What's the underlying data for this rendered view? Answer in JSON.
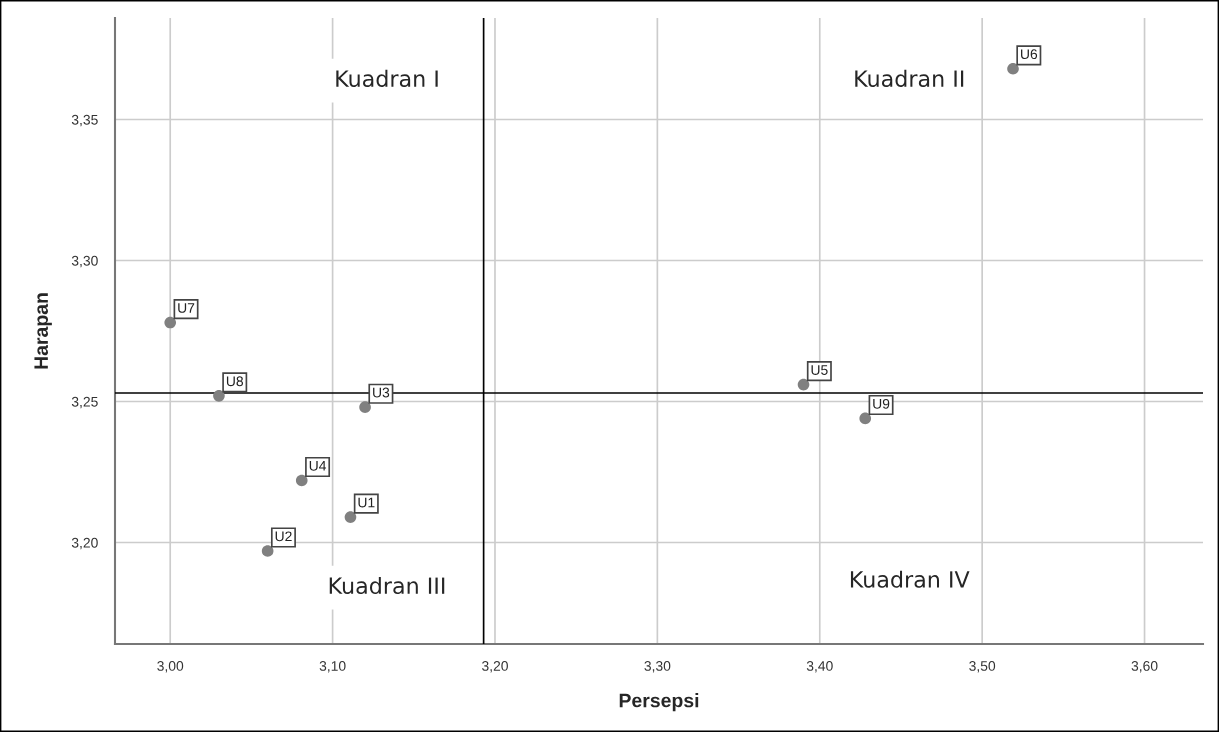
{
  "chart_data": {
    "type": "scatter",
    "xlabel": "Persepsi",
    "ylabel": "Harapan",
    "x": [
      3.111,
      3.06,
      3.12,
      3.081,
      3.39,
      3.519,
      3.0,
      3.03,
      3.428
    ],
    "series": [
      {
        "color": "#808080",
        "values": [
          3.209,
          3.197,
          3.248,
          3.222,
          3.256,
          3.368,
          3.278,
          3.252,
          3.244
        ]
      }
    ],
    "xlim": [
      2.966,
      3.636
    ],
    "ylim": [
      3.164,
      3.386
    ],
    "xticks": [
      {
        "value": 3.0,
        "label": "3,00"
      },
      {
        "value": 3.1,
        "label": "3,10"
      },
      {
        "value": 3.2,
        "label": "3,20"
      },
      {
        "value": 3.3,
        "label": "3,30"
      },
      {
        "value": 3.4,
        "label": "3,40"
      },
      {
        "value": 3.5,
        "label": "3,50"
      },
      {
        "value": 3.6,
        "label": "3,60"
      }
    ],
    "yticks": [
      {
        "value": 3.2,
        "label": "3,20"
      },
      {
        "value": 3.25,
        "label": "3,25"
      },
      {
        "value": 3.3,
        "label": "3,30"
      },
      {
        "value": 3.35,
        "label": "3,35"
      }
    ],
    "ref_lines": [
      {
        "axis": "x",
        "value": 3.193,
        "color": "#000000"
      },
      {
        "axis": "y",
        "value": 3.253,
        "color": "#000000"
      }
    ],
    "grid": true,
    "marker": "circle",
    "annotations": [
      "Kuadran I",
      "Kuadran II",
      "Kuadran III",
      "Kuadran IV",
      {
        "text": "U1",
        "x": 3.111,
        "y": 3.209
      },
      {
        "text": "U2",
        "x": 3.06,
        "y": 3.197
      },
      {
        "text": "U3",
        "x": 3.12,
        "y": 3.248
      },
      {
        "text": "U4",
        "x": 3.081,
        "y": 3.222
      },
      {
        "text": "U5",
        "x": 3.39,
        "y": 3.256
      },
      {
        "text": "U6",
        "x": 3.519,
        "y": 3.368
      },
      {
        "text": "U7",
        "x": 3.0,
        "y": 3.278
      },
      {
        "text": "U8",
        "x": 3.03,
        "y": 3.252
      },
      {
        "text": "U9",
        "x": 3.428,
        "y": 3.244
      }
    ]
  }
}
